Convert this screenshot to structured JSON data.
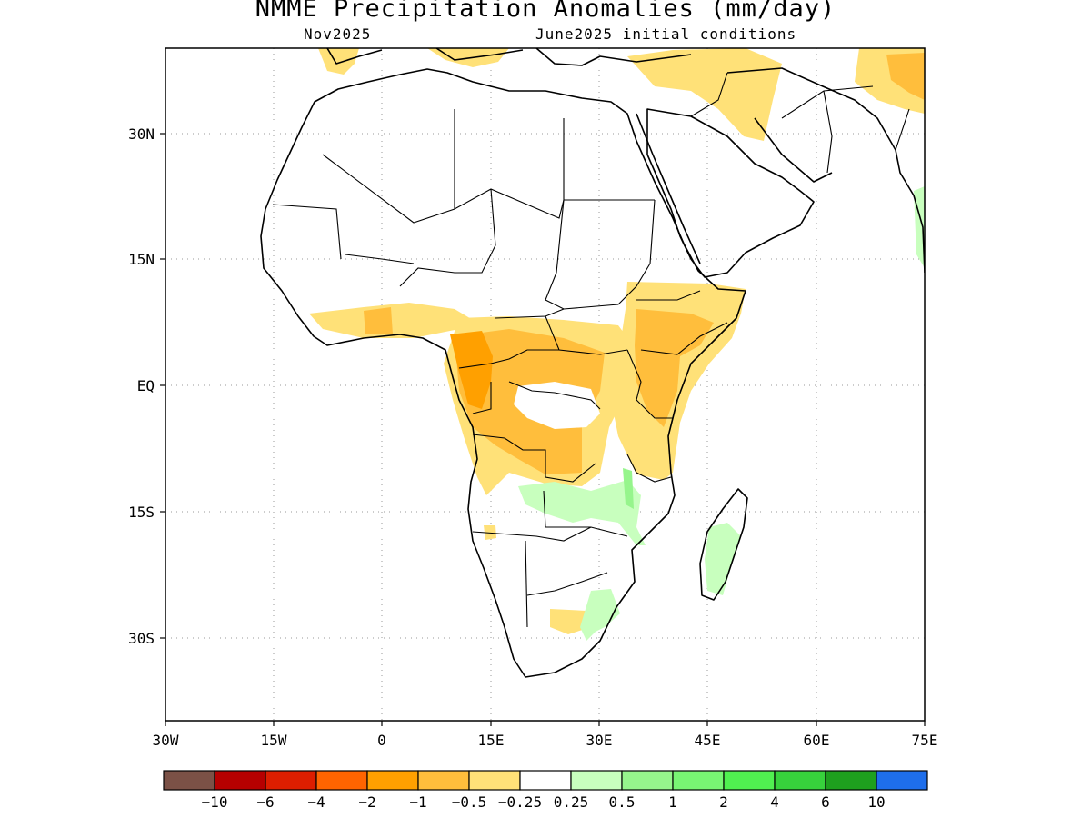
{
  "title": "NMME Precipitation Anomalies (mm/day)",
  "subtitle_left": "Nov2025",
  "subtitle_right": "June2025 initial conditions",
  "lat_labels": [
    "30N",
    "15N",
    "EQ",
    "15S",
    "30S"
  ],
  "lon_labels": [
    "30W",
    "15W",
    "0",
    "15E",
    "30E",
    "45E",
    "60E",
    "75E"
  ],
  "colorbar": {
    "colors": [
      "#7b5146",
      "#b60000",
      "#dc1e00",
      "#ff6400",
      "#ffa000",
      "#ffbe3c",
      "#ffe178",
      "#ffffff",
      "#c8ffbe",
      "#96f58c",
      "#78f573",
      "#50f050",
      "#37d23c",
      "#1ea01e",
      "#1e6eeb"
    ],
    "labels": [
      "-10",
      "-6",
      "-4",
      "-2",
      "-1",
      "-0.5",
      "-0.25",
      "0.25",
      "0.5",
      "1",
      "2",
      "4",
      "6",
      "10"
    ]
  },
  "legend_colors": {
    "dry_light": "#ffe178",
    "dry_moderate": "#ffbe3c",
    "dry_strong": "#ffa000",
    "wet_light": "#c8ffbe",
    "wet_moderate": "#96f58c"
  }
}
